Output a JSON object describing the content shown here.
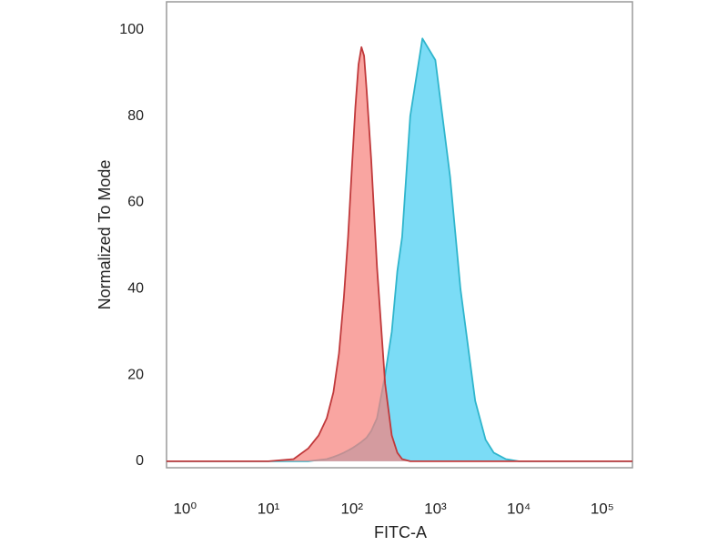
{
  "chart_data": {
    "type": "area",
    "xlabel": "FITC-A",
    "ylabel": "Normalized To Mode",
    "xscale": "log",
    "xlim": [
      0.6,
      230000
    ],
    "ylim": [
      -1.5,
      106.5
    ],
    "xticks": [
      {
        "value": 1,
        "label": "10⁰"
      },
      {
        "value": 10,
        "label": "10¹"
      },
      {
        "value": 100,
        "label": "10²"
      },
      {
        "value": 1000,
        "label": "10³"
      },
      {
        "value": 10000,
        "label": "10⁴"
      },
      {
        "value": 100000,
        "label": "10⁵"
      }
    ],
    "yticks": [
      0,
      20,
      40,
      60,
      80,
      100
    ],
    "x": [
      0.6,
      10,
      20,
      30,
      40,
      50,
      60,
      70,
      80,
      90,
      100,
      110,
      120,
      130,
      140,
      150,
      170,
      200,
      250,
      300,
      350,
      400,
      500,
      700,
      1000,
      1500,
      2000,
      3000,
      4000,
      5000,
      7000,
      10000,
      230000
    ],
    "series": [
      {
        "color": "#64d6f5",
        "stroke": "#2fb5cc",
        "values": [
          0,
          0,
          0,
          0,
          0.3,
          0.5,
          1,
          1.5,
          2,
          2.5,
          3,
          3.5,
          4,
          4.5,
          5,
          5.5,
          7,
          10,
          20,
          30,
          44,
          52,
          80,
          98,
          93,
          66,
          40,
          14,
          5,
          2,
          0.5,
          0,
          0
        ]
      },
      {
        "color": "#f7827d",
        "stroke": "#c0393b",
        "values": [
          0,
          0,
          0.5,
          3,
          6,
          10,
          16,
          25,
          38,
          52,
          68,
          82,
          92,
          96,
          94,
          86,
          70,
          45,
          18,
          6,
          2,
          0.5,
          0,
          0,
          0,
          0,
          0,
          0,
          0,
          0,
          0,
          0,
          0
        ]
      }
    ]
  }
}
